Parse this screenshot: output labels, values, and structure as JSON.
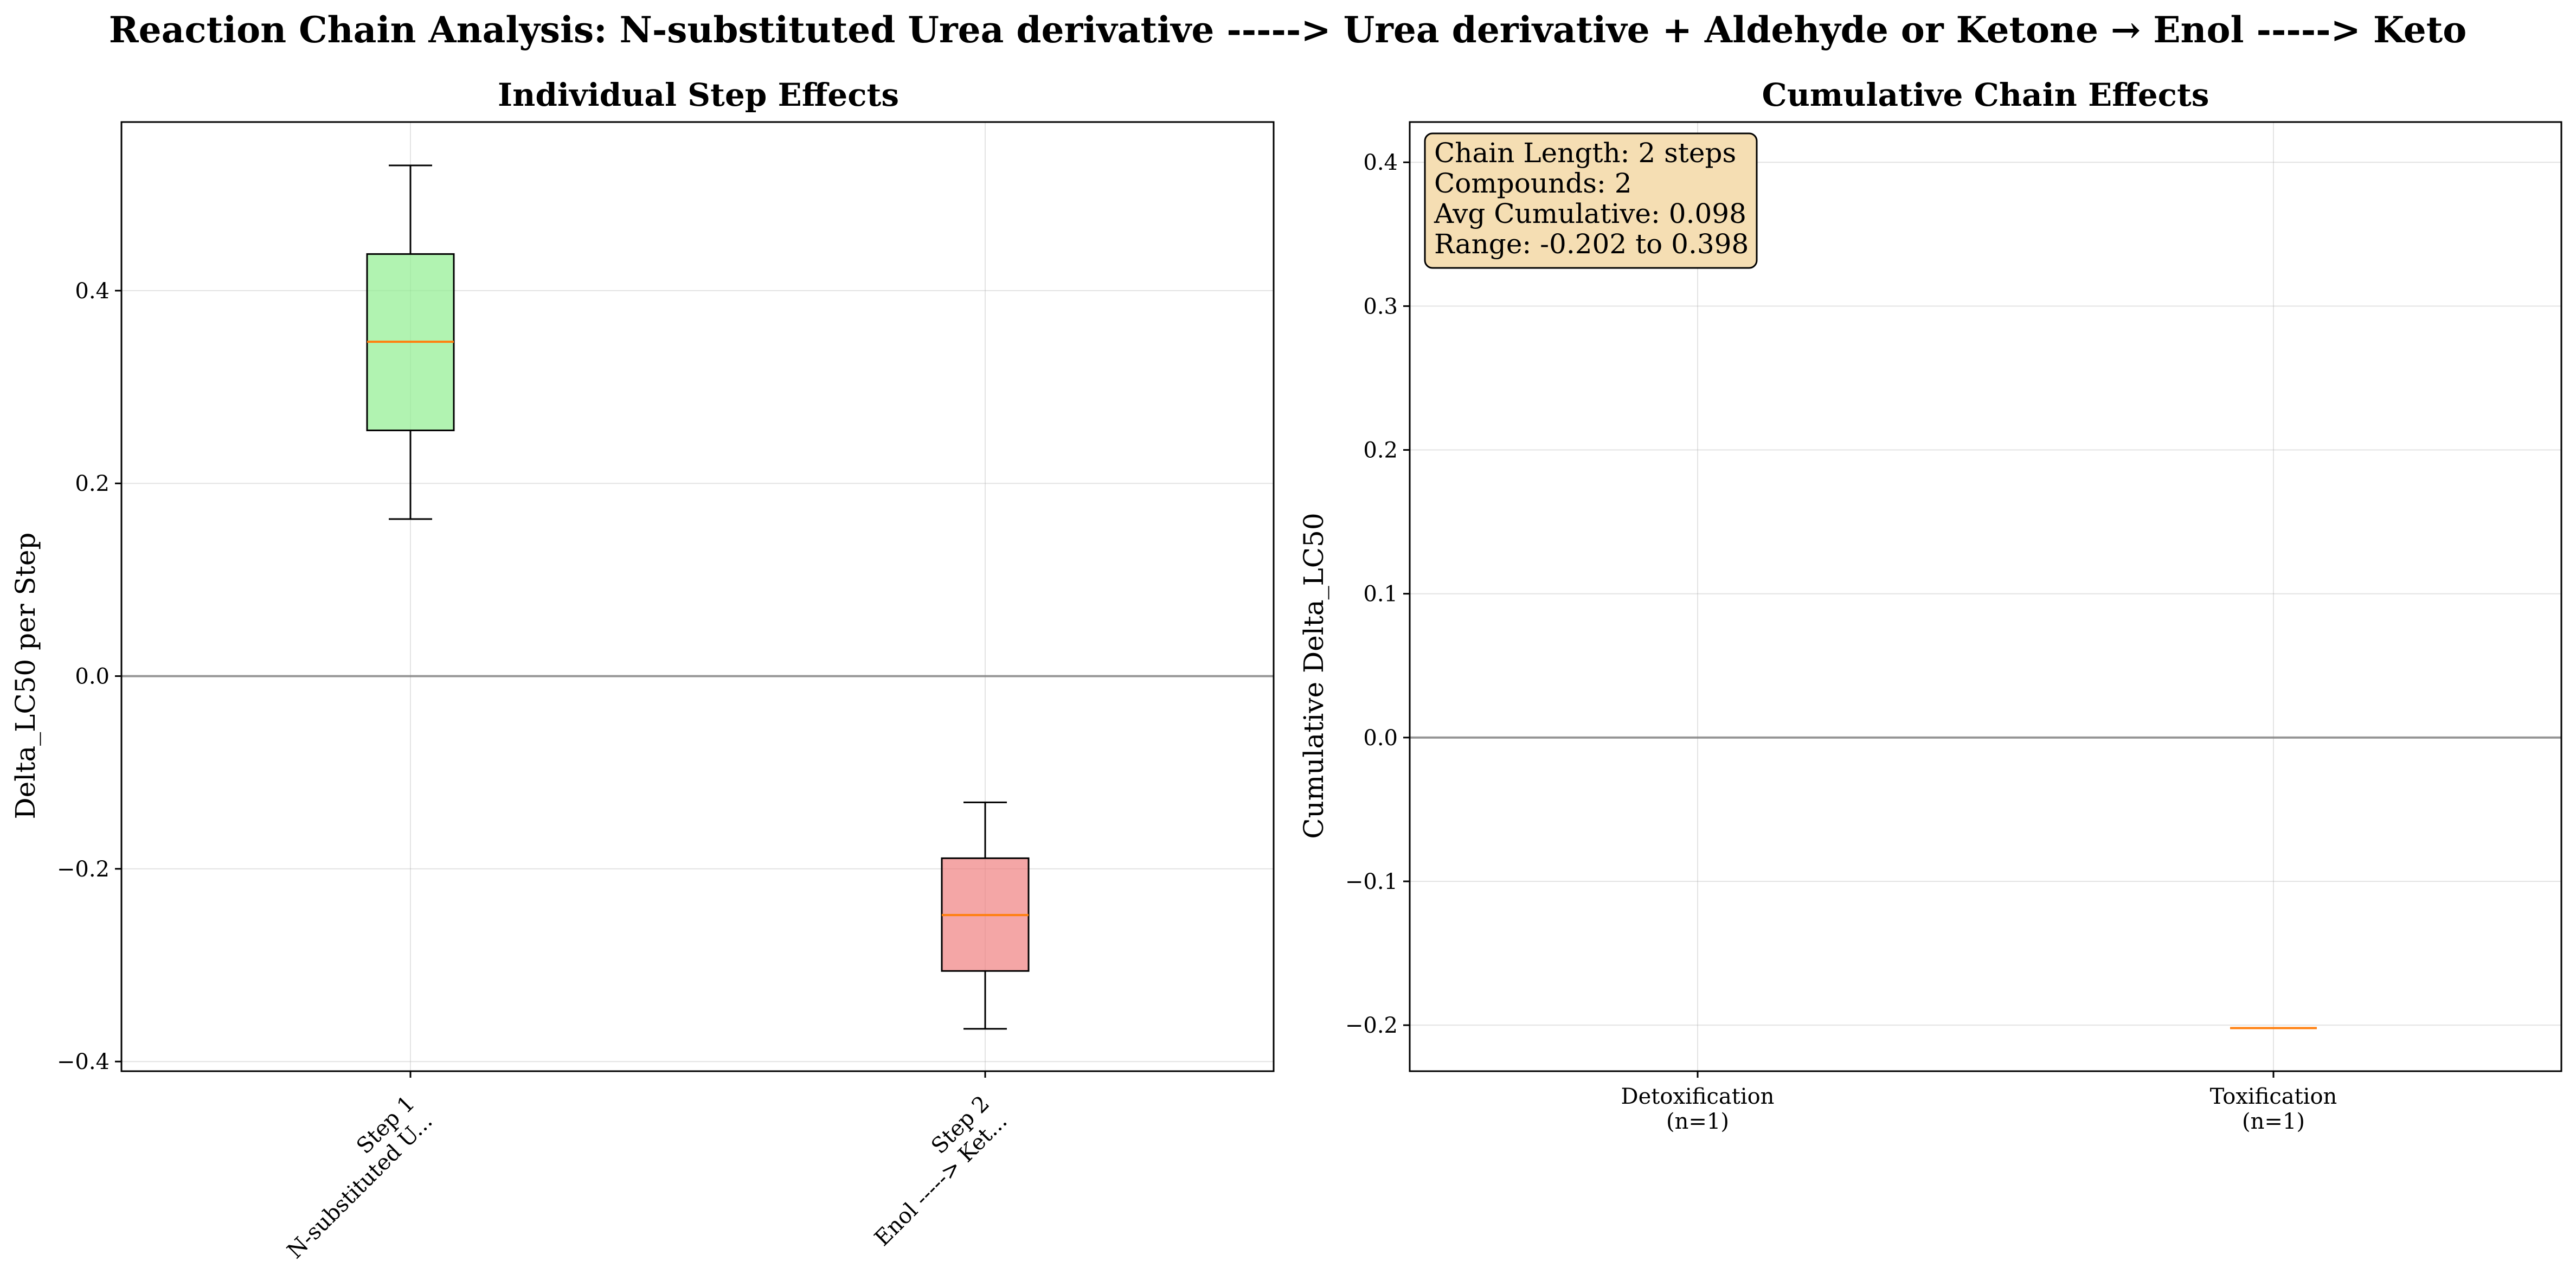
{
  "figure_title": "Reaction Chain Analysis: N-substituted Urea derivative -----> Urea derivative + Aldehyde or Ketone → Enol -----> Keto",
  "colors": {
    "step1_box": "#90ee90",
    "step2_box": "#f08080",
    "median": "#ff7f0e",
    "zero_line": "#808080",
    "stats_box_fill": "#f5deb3",
    "grid": "#b0b0b0"
  },
  "chart_data": [
    {
      "type": "box",
      "title": "Individual Step Effects",
      "xlabel": "",
      "ylabel": "Delta_LC50 per Step",
      "ylim": [
        -0.41,
        0.575
      ],
      "yticks": [
        -0.4,
        -0.2,
        0.0,
        0.2,
        0.4
      ],
      "ytick_labels": [
        "−0.4",
        "−0.2",
        "0.0",
        "0.2",
        "0.4"
      ],
      "grid": true,
      "zero_line": 0.0,
      "categories": [
        {
          "line1": "Step 1",
          "line2": "N-substituted U..."
        },
        {
          "line1": "Step 2",
          "line2": "Enol -----> Ket..."
        }
      ],
      "boxes": [
        {
          "whisker_low": 0.163,
          "q1": 0.255,
          "median": 0.347,
          "q3": 0.438,
          "whisker_high": 0.53,
          "color": "#90ee90"
        },
        {
          "whisker_low": -0.366,
          "q1": -0.306,
          "median": -0.248,
          "q3": -0.189,
          "whisker_high": -0.131,
          "color": "#f08080"
        }
      ]
    },
    {
      "type": "box",
      "title": "Cumulative Chain Effects",
      "xlabel": "",
      "ylabel": "Cumulative Delta_LC50",
      "ylim": [
        -0.232,
        0.428
      ],
      "yticks": [
        -0.2,
        -0.1,
        0.0,
        0.1,
        0.2,
        0.3,
        0.4
      ],
      "ytick_labels": [
        "−0.2",
        "−0.1",
        "0.0",
        "0.1",
        "0.2",
        "0.3",
        "0.4"
      ],
      "grid": true,
      "zero_line": 0.0,
      "categories": [
        {
          "line1": "Detoxification",
          "line2": "(n=1)"
        },
        {
          "line1": "Toxification",
          "line2": "(n=1)"
        }
      ],
      "boxes": [
        {
          "whisker_low": 0.398,
          "q1": 0.398,
          "median": 0.398,
          "q3": 0.398,
          "whisker_high": 0.398
        },
        {
          "whisker_low": -0.202,
          "q1": -0.202,
          "median": -0.202,
          "q3": -0.202,
          "whisker_high": -0.202
        }
      ],
      "stats_box": {
        "placement": "top-left",
        "lines": [
          "Chain Length: 2 steps",
          "Compounds: 2",
          "Avg Cumulative: 0.098",
          "Range: -0.202 to 0.398"
        ]
      }
    }
  ]
}
